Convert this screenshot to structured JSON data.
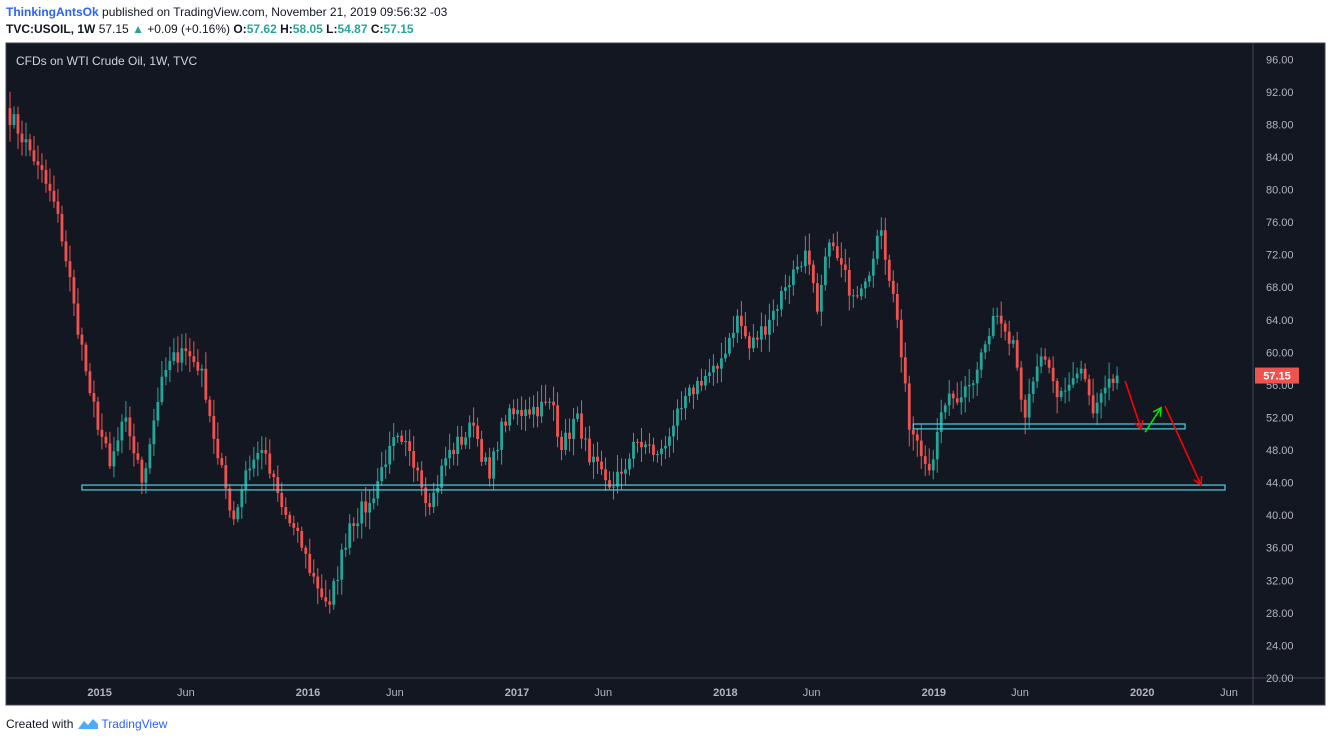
{
  "header": {
    "author": "ThinkingAntsOk",
    "published": "published on TradingView.com, November 21, 2019 09:56:32 -03",
    "symbol": "TVC:USOIL, 1W",
    "last": "57.15",
    "change_arrow": "▲",
    "change": "+0.09 (+0.16%)",
    "o_label": "O:",
    "o_value": "57.62",
    "h_label": "H:",
    "h_value": "58.05",
    "l_label": "L:",
    "l_value": "54.87",
    "c_label": "C:",
    "c_value": "57.15"
  },
  "footer": {
    "created_with": "Created with",
    "brand": "TradingView"
  },
  "colors": {
    "background": "#131722",
    "up": "#26a69a",
    "down": "#ef5350",
    "zone": "#4dd0e1",
    "arrow_red": "#ff0000",
    "arrow_green": "#00e600",
    "axis_text": "#b2b5be",
    "price_tag": "#ef5350"
  },
  "chart_data": {
    "type": "candlestick",
    "title": "CFDs on WTI Crude Oil, 1W, TVC",
    "ylim": [
      20,
      98
    ],
    "y_ticks": [
      96,
      92,
      88,
      84,
      80,
      76,
      72,
      68,
      64,
      60,
      56,
      52,
      48,
      44,
      40,
      36,
      32,
      28,
      24,
      20
    ],
    "y_tick_labels": [
      "96.00",
      "92.00",
      "88.00",
      "84.00",
      "80.00",
      "76.00",
      "72.00",
      "68.00",
      "64.00",
      "60.00",
      "56.00",
      "52.00",
      "48.00",
      "44.00",
      "40.00",
      "36.00",
      "32.00",
      "28.00",
      "24.00",
      "20.00"
    ],
    "x_range": [
      "2014-07-21",
      "2020-07-13"
    ],
    "x_ticks": [
      {
        "label": "2015",
        "date": "2015-01-01"
      },
      {
        "label": "Jun",
        "date": "2015-06-01"
      },
      {
        "label": "2016",
        "date": "2016-01-01"
      },
      {
        "label": "Jun",
        "date": "2016-06-01"
      },
      {
        "label": "2017",
        "date": "2017-01-01"
      },
      {
        "label": "Jun",
        "date": "2017-06-01"
      },
      {
        "label": "2018",
        "date": "2018-01-01"
      },
      {
        "label": "Jun",
        "date": "2018-06-01"
      },
      {
        "label": "2019",
        "date": "2019-01-01"
      },
      {
        "label": "Jun",
        "date": "2019-06-01"
      },
      {
        "label": "2020",
        "date": "2020-01-01"
      },
      {
        "label": "Jun",
        "date": "2020-06-01"
      }
    ],
    "path_anchors": [
      {
        "date": "2014-07-21",
        "price": 90.0
      },
      {
        "date": "2014-09-15",
        "price": 83.0
      },
      {
        "date": "2014-10-20",
        "price": 77.0
      },
      {
        "date": "2014-11-17",
        "price": 66.0
      },
      {
        "date": "2014-12-15",
        "price": 55.0
      },
      {
        "date": "2015-01-19",
        "price": 46.0
      },
      {
        "date": "2015-02-16",
        "price": 52.0
      },
      {
        "date": "2015-03-16",
        "price": 44.0
      },
      {
        "date": "2015-04-20",
        "price": 57.0
      },
      {
        "date": "2015-05-25",
        "price": 60.5
      },
      {
        "date": "2015-06-29",
        "price": 58.0
      },
      {
        "date": "2015-07-27",
        "price": 47.0
      },
      {
        "date": "2015-08-24",
        "price": 39.5
      },
      {
        "date": "2015-09-14",
        "price": 45.5
      },
      {
        "date": "2015-10-12",
        "price": 48.0
      },
      {
        "date": "2015-11-16",
        "price": 41.0
      },
      {
        "date": "2015-12-21",
        "price": 36.0
      },
      {
        "date": "2016-01-18",
        "price": 31.0
      },
      {
        "date": "2016-02-08",
        "price": 29.0
      },
      {
        "date": "2016-03-14",
        "price": 39.0
      },
      {
        "date": "2016-04-18",
        "price": 41.5
      },
      {
        "date": "2016-05-23",
        "price": 48.5
      },
      {
        "date": "2016-06-13",
        "price": 49.0
      },
      {
        "date": "2016-07-11",
        "price": 45.5
      },
      {
        "date": "2016-08-01",
        "price": 41.0
      },
      {
        "date": "2016-08-29",
        "price": 47.0
      },
      {
        "date": "2016-10-17",
        "price": 51.0
      },
      {
        "date": "2016-11-14",
        "price": 44.5
      },
      {
        "date": "2016-12-05",
        "price": 51.5
      },
      {
        "date": "2017-01-16",
        "price": 53.0
      },
      {
        "date": "2017-03-06",
        "price": 53.5
      },
      {
        "date": "2017-03-20",
        "price": 48.0
      },
      {
        "date": "2017-04-17",
        "price": 52.5
      },
      {
        "date": "2017-05-08",
        "price": 46.5
      },
      {
        "date": "2017-06-19",
        "price": 43.5
      },
      {
        "date": "2017-07-31",
        "price": 49.0
      },
      {
        "date": "2017-09-04",
        "price": 47.5
      },
      {
        "date": "2017-10-02",
        "price": 51.0
      },
      {
        "date": "2017-11-13",
        "price": 56.5
      },
      {
        "date": "2017-12-18",
        "price": 58.0
      },
      {
        "date": "2018-01-22",
        "price": 64.5
      },
      {
        "date": "2018-02-12",
        "price": 60.5
      },
      {
        "date": "2018-03-19",
        "price": 64.0
      },
      {
        "date": "2018-04-16",
        "price": 68.0
      },
      {
        "date": "2018-05-21",
        "price": 72.5
      },
      {
        "date": "2018-06-11",
        "price": 65.0
      },
      {
        "date": "2018-07-02",
        "price": 73.5
      },
      {
        "date": "2018-08-13",
        "price": 67.0
      },
      {
        "date": "2018-09-17",
        "price": 71.5
      },
      {
        "date": "2018-10-01",
        "price": 75.0
      },
      {
        "date": "2018-10-29",
        "price": 64.0
      },
      {
        "date": "2018-11-19",
        "price": 50.5
      },
      {
        "date": "2018-12-24",
        "price": 45.5
      },
      {
        "date": "2019-01-21",
        "price": 53.5
      },
      {
        "date": "2019-03-04",
        "price": 56.0
      },
      {
        "date": "2019-04-22",
        "price": 64.5
      },
      {
        "date": "2019-05-20",
        "price": 61.5
      },
      {
        "date": "2019-06-10",
        "price": 52.0
      },
      {
        "date": "2019-07-08",
        "price": 59.5
      },
      {
        "date": "2019-08-05",
        "price": 54.5
      },
      {
        "date": "2019-09-16",
        "price": 58.0
      },
      {
        "date": "2019-10-07",
        "price": 52.5
      },
      {
        "date": "2019-11-18",
        "price": 57.15
      }
    ],
    "last_price": 57.15,
    "last_price_label": "57.15",
    "zones": [
      {
        "from": "2014-12-01",
        "to": "2020-05-25",
        "low": 43.1,
        "high": 43.7
      },
      {
        "from": "2018-11-26",
        "to": "2020-03-16",
        "low": 50.6,
        "high": 51.2
      }
    ],
    "arrows": [
      {
        "color": "red",
        "from": {
          "date": "2019-12-02",
          "price": 56.5
        },
        "to": {
          "date": "2019-12-30",
          "price": 50.6
        }
      },
      {
        "color": "green",
        "from": {
          "date": "2020-01-06",
          "price": 50.2
        },
        "to": {
          "date": "2020-02-03",
          "price": 53.2
        }
      },
      {
        "color": "red",
        "from": {
          "date": "2020-02-10",
          "price": 53.4
        },
        "to": {
          "date": "2020-04-13",
          "price": 43.7
        }
      }
    ]
  }
}
